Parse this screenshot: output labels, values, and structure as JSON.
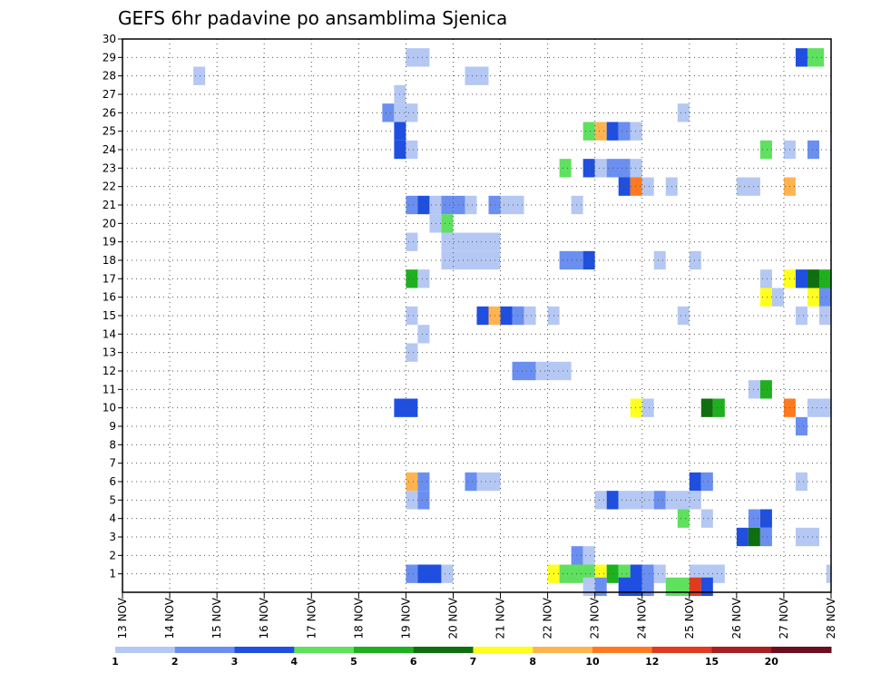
{
  "chart_data": {
    "type": "heatmap",
    "title": "GEFS 6hr padavine po ansamblima Sjenica",
    "xlabel": "",
    "ylabel": "",
    "x_tick_labels": [
      "13 NOV",
      "14 NOV",
      "15 NOV",
      "16 NOV",
      "17 NOV",
      "18 NOV",
      "19 NOV",
      "20 NOV",
      "21 NOV",
      "22 NOV",
      "23 NOV",
      "24 NOV",
      "25 NOV",
      "26 NOV",
      "27 NOV",
      "28 NOV"
    ],
    "x_range": [
      0,
      15
    ],
    "y_range": [
      0,
      30
    ],
    "y_tick_labels": [
      "1",
      "2",
      "3",
      "4",
      "5",
      "6",
      "7",
      "8",
      "9",
      "10",
      "11",
      "12",
      "13",
      "14",
      "15",
      "16",
      "17",
      "18",
      "19",
      "20",
      "21",
      "22",
      "23",
      "24",
      "25",
      "26",
      "27",
      "28",
      "29",
      "30"
    ],
    "grid": true,
    "colorbar": {
      "labels": [
        "1",
        "2",
        "3",
        "4",
        "5",
        "6",
        "7",
        "8",
        "10",
        "12",
        "15",
        "20"
      ],
      "colors": [
        "#b5c8f4",
        "#6a8ff0",
        "#1f4fe0",
        "#5fe05f",
        "#1fb01f",
        "#0f6f0f",
        "#ffff1f",
        "#ffb44f",
        "#ff7a1f",
        "#e03a1f",
        "#a81f1f",
        "#6a0f1f"
      ]
    },
    "cells": [
      {
        "m": 29,
        "d": 6.0,
        "w": 0.5,
        "c": 0
      },
      {
        "m": 29,
        "d": 14.25,
        "w": 0.25,
        "c": 2
      },
      {
        "m": 29,
        "d": 14.5,
        "w": 0.35,
        "c": 3
      },
      {
        "m": 28,
        "d": 1.5,
        "w": 0.25,
        "c": 0
      },
      {
        "m": 28,
        "d": 7.25,
        "w": 0.5,
        "c": 0
      },
      {
        "m": 27,
        "d": 5.75,
        "w": 0.25,
        "c": 0
      },
      {
        "m": 26,
        "d": 5.5,
        "w": 0.25,
        "c": 1
      },
      {
        "m": 26,
        "d": 5.75,
        "w": 0.5,
        "c": 0
      },
      {
        "m": 26,
        "d": 11.75,
        "w": 0.25,
        "c": 0
      },
      {
        "m": 25,
        "d": 5.75,
        "w": 0.25,
        "c": 2
      },
      {
        "m": 25,
        "d": 9.75,
        "w": 0.25,
        "c": 3
      },
      {
        "m": 25,
        "d": 10.0,
        "w": 0.25,
        "c": 7
      },
      {
        "m": 25,
        "d": 10.25,
        "w": 0.25,
        "c": 2
      },
      {
        "m": 25,
        "d": 10.5,
        "w": 0.25,
        "c": 1
      },
      {
        "m": 25,
        "d": 10.75,
        "w": 0.25,
        "c": 0
      },
      {
        "m": 24,
        "d": 5.75,
        "w": 0.25,
        "c": 2
      },
      {
        "m": 24,
        "d": 6.0,
        "w": 0.25,
        "c": 0
      },
      {
        "m": 24,
        "d": 13.5,
        "w": 0.25,
        "c": 3
      },
      {
        "m": 24,
        "d": 14.0,
        "w": 0.25,
        "c": 0
      },
      {
        "m": 24,
        "d": 14.5,
        "w": 0.25,
        "c": 1
      },
      {
        "m": 23,
        "d": 9.25,
        "w": 0.25,
        "c": 3
      },
      {
        "m": 23,
        "d": 9.75,
        "w": 0.25,
        "c": 2
      },
      {
        "m": 23,
        "d": 10.0,
        "w": 0.25,
        "c": 0
      },
      {
        "m": 23,
        "d": 10.25,
        "w": 0.5,
        "c": 1
      },
      {
        "m": 23,
        "d": 10.75,
        "w": 0.25,
        "c": 0
      },
      {
        "m": 22,
        "d": 10.5,
        "w": 0.25,
        "c": 2
      },
      {
        "m": 22,
        "d": 10.75,
        "w": 0.25,
        "c": 8
      },
      {
        "m": 22,
        "d": 11.0,
        "w": 0.25,
        "c": 0
      },
      {
        "m": 22,
        "d": 11.5,
        "w": 0.25,
        "c": 0
      },
      {
        "m": 22,
        "d": 13.0,
        "w": 0.5,
        "c": 0
      },
      {
        "m": 22,
        "d": 14.0,
        "w": 0.25,
        "c": 7
      },
      {
        "m": 21,
        "d": 6.0,
        "w": 0.25,
        "c": 1
      },
      {
        "m": 21,
        "d": 6.25,
        "w": 0.25,
        "c": 2
      },
      {
        "m": 21,
        "d": 6.5,
        "w": 0.25,
        "c": 0
      },
      {
        "m": 21,
        "d": 6.75,
        "w": 0.5,
        "c": 1
      },
      {
        "m": 21,
        "d": 7.25,
        "w": 0.25,
        "c": 0
      },
      {
        "m": 21,
        "d": 7.75,
        "w": 0.25,
        "c": 1
      },
      {
        "m": 21,
        "d": 8.0,
        "w": 0.5,
        "c": 0
      },
      {
        "m": 21,
        "d": 9.5,
        "w": 0.25,
        "c": 0
      },
      {
        "m": 20,
        "d": 6.5,
        "w": 0.25,
        "c": 0
      },
      {
        "m": 20,
        "d": 6.75,
        "w": 0.25,
        "c": 3
      },
      {
        "m": 19,
        "d": 6.0,
        "w": 0.25,
        "c": 0
      },
      {
        "m": 19,
        "d": 6.75,
        "w": 1.25,
        "c": 0
      },
      {
        "m": 18,
        "d": 6.75,
        "w": 1.25,
        "c": 0
      },
      {
        "m": 18,
        "d": 9.25,
        "w": 0.5,
        "c": 1
      },
      {
        "m": 18,
        "d": 9.75,
        "w": 0.25,
        "c": 2
      },
      {
        "m": 18,
        "d": 11.25,
        "w": 0.25,
        "c": 0
      },
      {
        "m": 18,
        "d": 12.0,
        "w": 0.25,
        "c": 0
      },
      {
        "m": 17,
        "d": 6.0,
        "w": 0.25,
        "c": 4
      },
      {
        "m": 17,
        "d": 6.25,
        "w": 0.25,
        "c": 0
      },
      {
        "m": 17,
        "d": 13.5,
        "w": 0.25,
        "c": 0
      },
      {
        "m": 17,
        "d": 14.0,
        "w": 0.25,
        "c": 6
      },
      {
        "m": 17,
        "d": 14.25,
        "w": 0.25,
        "c": 2
      },
      {
        "m": 17,
        "d": 14.5,
        "w": 0.25,
        "c": 5
      },
      {
        "m": 17,
        "d": 14.75,
        "w": 0.25,
        "c": 4
      },
      {
        "m": 17,
        "d": 15.0,
        "w": 0.1,
        "c": 6
      },
      {
        "m": 16,
        "d": 13.5,
        "w": 0.25,
        "c": 6
      },
      {
        "m": 16,
        "d": 13.75,
        "w": 0.25,
        "c": 0
      },
      {
        "m": 16,
        "d": 14.5,
        "w": 0.25,
        "c": 6
      },
      {
        "m": 16,
        "d": 14.75,
        "w": 0.25,
        "c": 1
      },
      {
        "m": 15,
        "d": 6.0,
        "w": 0.25,
        "c": 0
      },
      {
        "m": 15,
        "d": 7.5,
        "w": 0.25,
        "c": 2
      },
      {
        "m": 15,
        "d": 7.75,
        "w": 0.25,
        "c": 7
      },
      {
        "m": 15,
        "d": 8.0,
        "w": 0.25,
        "c": 2
      },
      {
        "m": 15,
        "d": 8.25,
        "w": 0.25,
        "c": 1
      },
      {
        "m": 15,
        "d": 8.5,
        "w": 0.25,
        "c": 0
      },
      {
        "m": 15,
        "d": 9.0,
        "w": 0.25,
        "c": 0
      },
      {
        "m": 15,
        "d": 11.75,
        "w": 0.25,
        "c": 0
      },
      {
        "m": 15,
        "d": 14.25,
        "w": 0.25,
        "c": 0
      },
      {
        "m": 15,
        "d": 14.75,
        "w": 0.25,
        "c": 0
      },
      {
        "m": 14,
        "d": 6.25,
        "w": 0.25,
        "c": 0
      },
      {
        "m": 13,
        "d": 6.0,
        "w": 0.25,
        "c": 0
      },
      {
        "m": 12,
        "d": 8.25,
        "w": 0.5,
        "c": 1
      },
      {
        "m": 12,
        "d": 8.75,
        "w": 0.75,
        "c": 0
      },
      {
        "m": 11,
        "d": 13.25,
        "w": 0.25,
        "c": 0
      },
      {
        "m": 11,
        "d": 13.5,
        "w": 0.25,
        "c": 4
      },
      {
        "m": 10,
        "d": 5.75,
        "w": 0.5,
        "c": 2
      },
      {
        "m": 10,
        "d": 10.75,
        "w": 0.25,
        "c": 6
      },
      {
        "m": 10,
        "d": 11.0,
        "w": 0.25,
        "c": 0
      },
      {
        "m": 10,
        "d": 12.25,
        "w": 0.25,
        "c": 5
      },
      {
        "m": 10,
        "d": 12.5,
        "w": 0.25,
        "c": 4
      },
      {
        "m": 10,
        "d": 14.0,
        "w": 0.25,
        "c": 8
      },
      {
        "m": 10,
        "d": 14.5,
        "w": 0.5,
        "c": 0
      },
      {
        "m": 9,
        "d": 14.25,
        "w": 0.25,
        "c": 1
      },
      {
        "m": 6,
        "d": 6.0,
        "w": 0.25,
        "c": 7
      },
      {
        "m": 6,
        "d": 6.25,
        "w": 0.25,
        "c": 1
      },
      {
        "m": 6,
        "d": 7.25,
        "w": 0.25,
        "c": 1
      },
      {
        "m": 6,
        "d": 7.5,
        "w": 0.5,
        "c": 0
      },
      {
        "m": 6,
        "d": 12.0,
        "w": 0.25,
        "c": 2
      },
      {
        "m": 6,
        "d": 12.25,
        "w": 0.25,
        "c": 1
      },
      {
        "m": 6,
        "d": 14.25,
        "w": 0.25,
        "c": 0
      },
      {
        "m": 5,
        "d": 6.0,
        "w": 0.25,
        "c": 0
      },
      {
        "m": 5,
        "d": 6.25,
        "w": 0.25,
        "c": 1
      },
      {
        "m": 5,
        "d": 10.0,
        "w": 0.25,
        "c": 0
      },
      {
        "m": 5,
        "d": 10.25,
        "w": 0.25,
        "c": 2
      },
      {
        "m": 5,
        "d": 10.5,
        "w": 0.75,
        "c": 0
      },
      {
        "m": 5,
        "d": 11.25,
        "w": 0.25,
        "c": 1
      },
      {
        "m": 5,
        "d": 11.5,
        "w": 0.5,
        "c": 0
      },
      {
        "m": 5,
        "d": 12.0,
        "w": 0.25,
        "c": 0
      },
      {
        "m": 4,
        "d": 11.75,
        "w": 0.25,
        "c": 3
      },
      {
        "m": 4,
        "d": 12.25,
        "w": 0.25,
        "c": 0
      },
      {
        "m": 4,
        "d": 13.25,
        "w": 0.25,
        "c": 1
      },
      {
        "m": 4,
        "d": 13.5,
        "w": 0.25,
        "c": 2
      },
      {
        "m": 3,
        "d": 13.0,
        "w": 0.25,
        "c": 2
      },
      {
        "m": 3,
        "d": 13.25,
        "w": 0.25,
        "c": 5
      },
      {
        "m": 3,
        "d": 13.5,
        "w": 0.25,
        "c": 1
      },
      {
        "m": 3,
        "d": 14.25,
        "w": 0.5,
        "c": 0
      },
      {
        "m": 2,
        "d": 9.5,
        "w": 0.25,
        "c": 1
      },
      {
        "m": 2,
        "d": 9.75,
        "w": 0.25,
        "c": 0
      },
      {
        "m": 1,
        "d": 6.0,
        "w": 0.25,
        "c": 1
      },
      {
        "m": 1,
        "d": 6.25,
        "w": 0.5,
        "c": 2
      },
      {
        "m": 1,
        "d": 6.75,
        "w": 0.25,
        "c": 0
      },
      {
        "m": 1,
        "d": 9.0,
        "w": 0.25,
        "c": 6
      },
      {
        "m": 1,
        "d": 9.25,
        "w": 0.75,
        "c": 3
      },
      {
        "m": 1,
        "d": 10.0,
        "w": 0.25,
        "c": 6
      },
      {
        "m": 1,
        "d": 10.25,
        "w": 0.25,
        "c": 4
      },
      {
        "m": 1,
        "d": 10.5,
        "w": 0.25,
        "c": 3
      },
      {
        "m": 1,
        "d": 10.75,
        "w": 0.25,
        "c": 2
      },
      {
        "m": 1,
        "d": 11.0,
        "w": 0.25,
        "c": 1
      },
      {
        "m": 1,
        "d": 11.25,
        "w": 0.25,
        "c": 0
      },
      {
        "m": 1,
        "d": 12.0,
        "w": 0.75,
        "c": 0
      },
      {
        "m": 1,
        "d": 14.9,
        "w": 0.1,
        "c": 0
      },
      {
        "m": 0.3,
        "d": 9.75,
        "w": 0.25,
        "c": 0
      },
      {
        "m": 0.3,
        "d": 10.0,
        "w": 0.25,
        "c": 1
      },
      {
        "m": 0.3,
        "d": 10.5,
        "w": 0.5,
        "c": 2
      },
      {
        "m": 0.3,
        "d": 11.0,
        "w": 0.25,
        "c": 1
      },
      {
        "m": 0.3,
        "d": 11.5,
        "w": 0.5,
        "c": 3
      },
      {
        "m": 0.3,
        "d": 12.0,
        "w": 0.25,
        "c": 9
      },
      {
        "m": 0.3,
        "d": 12.25,
        "w": 0.25,
        "c": 2
      }
    ]
  }
}
